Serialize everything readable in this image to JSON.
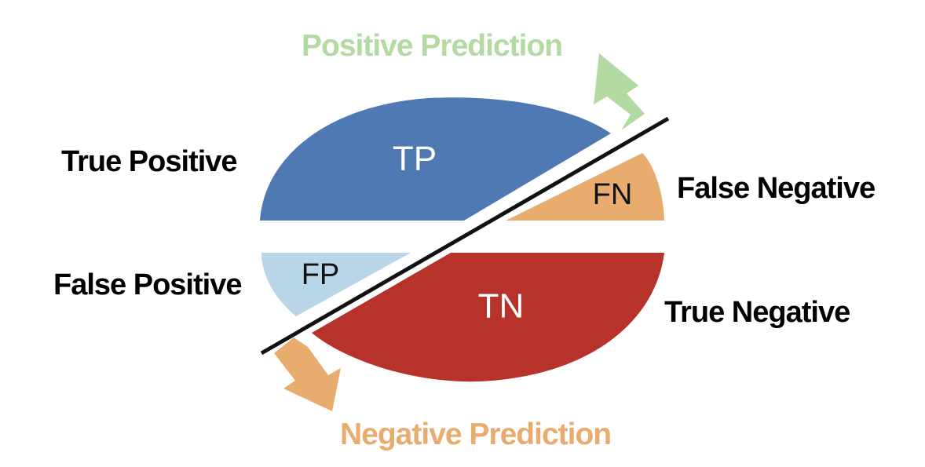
{
  "colors": {
    "tp": "#4E79B2",
    "fn": "#E8AC6F",
    "fp": "#B9D6E8",
    "tn": "#B7322A",
    "positive_arrow": "#B3DAA2",
    "negative_arrow": "#E8AC6F",
    "divider": "#111111"
  },
  "segments": {
    "tp": {
      "abbr": "TP",
      "label": "True Positive"
    },
    "fn": {
      "abbr": "FN",
      "label": "False Negative"
    },
    "fp": {
      "abbr": "FP",
      "label": "False Positive"
    },
    "tn": {
      "abbr": "TN",
      "label": "True Negative"
    }
  },
  "predictions": {
    "positive": "Positive Prediction",
    "negative": "Negative Prediction"
  }
}
